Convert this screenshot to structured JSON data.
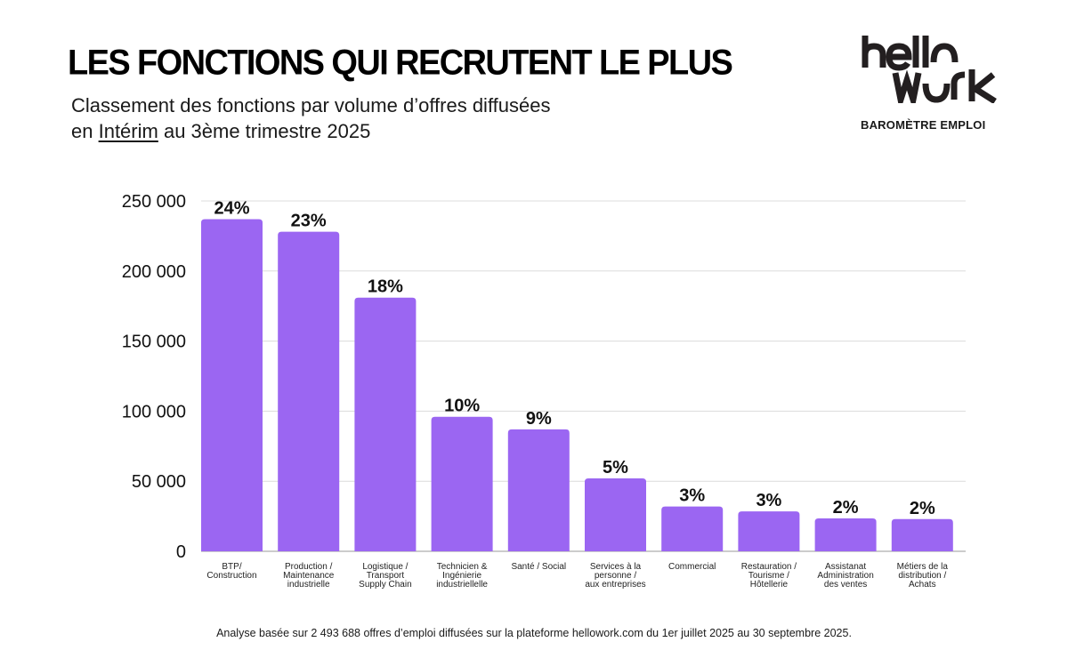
{
  "header": {
    "title": "LES FONCTIONS QUI RECRUTENT LE PLUS",
    "subtitle_line1": "Classement des fonctions par volume d’offres diffusées",
    "subtitle_line2_prefix": "en ",
    "subtitle_line2_emphasis": "Intérim",
    "subtitle_line2_suffix": " au 3ème trimestre 2025"
  },
  "brand": {
    "logo_line1": "hellO",
    "logo_line2": "wOrk",
    "logo_name": "hellowork",
    "tagline": "BAROMÈTRE EMPLOI"
  },
  "footer": {
    "note": "Analyse basée sur 2 493 688 offres d’emploi diffusées sur la plateforme hellowork.com du 1er juillet 2025 au 30 septembre 2025."
  },
  "colors": {
    "bar": "#9b66f2",
    "grid": "#dcdcdc",
    "text": "#111111"
  },
  "chart_data": {
    "type": "bar",
    "title": "LES FONCTIONS QUI RECRUTENT LE PLUS",
    "subtitle": "Classement des fonctions par volume d’offres diffusées en Intérim au 3ème trimestre 2025",
    "xlabel": "",
    "ylabel": "",
    "ylim": [
      0,
      250000
    ],
    "yticks": [
      0,
      50000,
      100000,
      150000,
      200000,
      250000
    ],
    "ytick_labels": [
      "0",
      "50 000",
      "100 000",
      "150 000",
      "200 000",
      "250 000"
    ],
    "grid": true,
    "legend": "none",
    "categories": [
      [
        "BTP/",
        "Construction"
      ],
      [
        "Production /",
        "Maintenance",
        "industrielle"
      ],
      [
        "Logistique /",
        "Transport",
        "Supply Chain"
      ],
      [
        "Technicien &",
        "Ingénierie",
        "industriellelle"
      ],
      [
        "Santé / Social"
      ],
      [
        "Services à la",
        "personne /",
        "aux entreprises"
      ],
      [
        "Commercial"
      ],
      [
        "Restauration /",
        "Tourisme /",
        "Hôtellerie"
      ],
      [
        "Assistanat",
        "Administration",
        "des ventes"
      ],
      [
        "Métiers de la",
        "distribution /",
        "Achats"
      ]
    ],
    "values": [
      237000,
      228000,
      181000,
      96000,
      87000,
      52000,
      32000,
      28500,
      23500,
      23000
    ],
    "data_labels": [
      "24%",
      "23%",
      "18%",
      "10%",
      "9%",
      "5%",
      "3%",
      "3%",
      "2%",
      "2%"
    ]
  }
}
